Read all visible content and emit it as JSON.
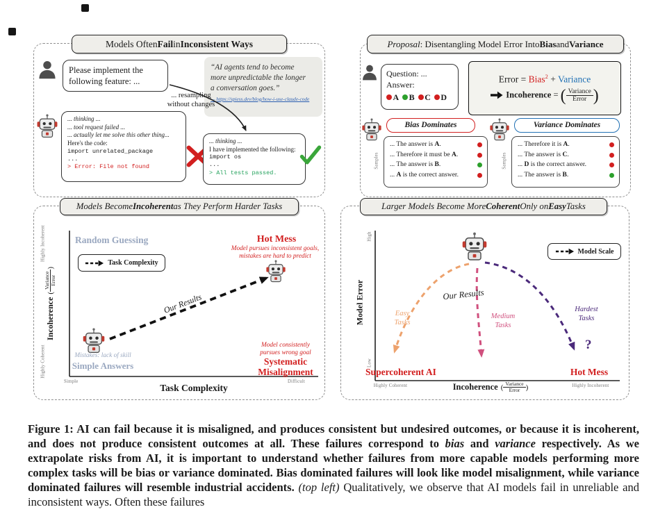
{
  "colors": {
    "red": "#d21f1f",
    "blue": "#2070b4",
    "green": "#2ca02c",
    "slate": "#9aa8c0",
    "orange": "#eda26d",
    "magenta": "#d0507e",
    "purple": "#4b2a7b",
    "err": "#d21f1f",
    "ok": "#27a35f",
    "link": "#2a5db0"
  },
  "panel_tl": {
    "title_seg": [
      [
        "Models Often ",
        ""
      ],
      [
        "Fail",
        "b"
      ],
      [
        " in ",
        ""
      ],
      [
        "Inconsistent Ways",
        "b"
      ]
    ],
    "user_request_lines": [
      "Please implement the",
      "following feature: ..."
    ],
    "resample_lines": [
      "... resampling",
      "without changes"
    ],
    "quote_lines": [
      "“AI agents tend to become",
      "more unpredictable the longer",
      "a conversation goes.”"
    ],
    "quote_link": "— https://spiess.dev/blog/how-i-use-claude-code",
    "fail_lines": [
      {
        "text": "... thinking ...",
        "style": "it"
      },
      {
        "text": "... tool request failed ...",
        "style": "it"
      },
      {
        "text": "... actually let me solve this other thing...",
        "style": "it"
      },
      {
        "text": "Here's the code:",
        "style": ""
      },
      {
        "text": "import unrelated_package",
        "style": "mono"
      },
      {
        "text": "...",
        "style": "mono"
      },
      {
        "text": "> Error: File not found",
        "style": "mono err"
      }
    ],
    "pass_lines": [
      {
        "text": "... thinking ...",
        "style": "it"
      },
      {
        "text": "I have implemented the following:",
        "style": ""
      },
      {
        "text": "import os",
        "style": "mono"
      },
      {
        "text": "...",
        "style": "mono"
      },
      {
        "text": "> All tests passed.",
        "style": "mono ok"
      }
    ]
  },
  "panel_tr": {
    "title_seg": [
      [
        "Proposal",
        "i"
      ],
      [
        ": Disentangling Model Error Into ",
        ""
      ],
      [
        "Bias",
        "b"
      ],
      [
        " and ",
        ""
      ],
      [
        "Variance",
        "b"
      ]
    ],
    "question_label": "Question: ...",
    "answer_label": "Answer:",
    "answers": [
      {
        "letter": "A",
        "color": "#d21f1f"
      },
      {
        "letter": "B",
        "color": "#2ca02c"
      },
      {
        "letter": "C",
        "color": "#d21f1f"
      },
      {
        "letter": "D",
        "color": "#d21f1f"
      }
    ],
    "error_formula_seg": [
      [
        "Error = ",
        ""
      ],
      [
        "Bias",
        "red"
      ],
      [
        "2",
        "red sup"
      ],
      [
        " + ",
        ""
      ],
      [
        "Variance",
        "blue"
      ]
    ],
    "incoherence_prefix": "Incoherence",
    "equals": " = ",
    "frac_num": "Variance",
    "frac_den": "Error",
    "bias": {
      "title": "Bias Dominates",
      "samples_label": "Samples",
      "lines": [
        {
          "pre": "... The answer is ",
          "em": "A",
          "post": ".",
          "dot": "#d21f1f"
        },
        {
          "pre": "... Therefore it must be ",
          "em": "A",
          "post": ".",
          "dot": "#d21f1f"
        },
        {
          "pre": "... The answer is ",
          "em": "B",
          "post": ".",
          "dot": "#2ca02c"
        },
        {
          "pre": "... ",
          "em": "A",
          "post": " is the correct answer.",
          "dot": "#d21f1f"
        }
      ]
    },
    "variance": {
      "title": "Variance Dominates",
      "samples_label": "Samples",
      "lines": [
        {
          "pre": "... Therefore it is ",
          "em": "A",
          "post": ".",
          "dot": "#d21f1f"
        },
        {
          "pre": "... The answer is ",
          "em": "C",
          "post": ".",
          "dot": "#d21f1f"
        },
        {
          "pre": "... ",
          "em": "D",
          "post": " is the correct answer.",
          "dot": "#d21f1f"
        },
        {
          "pre": "... The answer is ",
          "em": "B",
          "post": ".",
          "dot": "#2ca02c"
        }
      ]
    }
  },
  "panel_bl": {
    "title_seg": [
      [
        "Models Become ",
        "i"
      ],
      [
        "Incoherent",
        "bi"
      ],
      [
        " as They Perform Harder Tasks",
        "i"
      ]
    ],
    "legend_label": "Task Complexity",
    "y_label": "Incoherence",
    "y_frac_num": "Variance",
    "y_frac_den": "Error",
    "y_top": "Highly Incoherent",
    "y_bottom": "Highly Coherent",
    "x_label": "Task Complexity",
    "x_left": "Simple",
    "x_right": "Difficult",
    "random_guessing": "Random Guessing",
    "hot_mess": "Hot Mess",
    "hot_mess_desc_lines": [
      "Model pursues inconsistent goals,",
      "mistakes are hard to predict"
    ],
    "arrow_label": "Our Results",
    "simple_desc": "Mistakes: lack of skill",
    "simple_label": "Simple Answers",
    "misalign_desc_lines": [
      "Model consistently",
      "pursues wrong goal"
    ],
    "misalign_lines": [
      "Systematic",
      "Misalignment"
    ]
  },
  "panel_br": {
    "title_seg": [
      [
        "Larger Models Become More ",
        "i"
      ],
      [
        "Coherent",
        "bi"
      ],
      [
        " Only on ",
        "i"
      ],
      [
        "Easy",
        "bi"
      ],
      [
        " Tasks",
        "i"
      ]
    ],
    "legend_label": "Model Scale",
    "y_label": "Model Error",
    "y_top": "High",
    "y_bottom": "Low",
    "x_label": "Incoherence",
    "x_frac_num": "Variance",
    "x_frac_den": "Error",
    "x_left": "Highly Coherent",
    "x_right": "Highly Incoherent",
    "our_results": "Our Results",
    "easy_lines": [
      "Easy",
      "Tasks"
    ],
    "medium_lines": [
      "Medium",
      "Tasks"
    ],
    "hardest_lines": [
      "Hardest",
      "Tasks"
    ],
    "question_mark": "?",
    "left_end": "Supercoherent AI",
    "right_end": "Hot Mess"
  },
  "caption_seg": [
    [
      "Figure 1: ",
      "b"
    ],
    [
      "AI can fail because it is misaligned, and produces consistent but undesired outcomes, or because it is incoherent, and does not produce consistent outcomes at all. These failures correspond to ",
      "b"
    ],
    [
      "bias",
      "bi"
    ],
    [
      " and ",
      "b"
    ],
    [
      "variance",
      "bi"
    ],
    [
      " respectively. As we extrapolate risks from AI, it is important to understand whether failures from more capable models performing more complex tasks will be bias or variance dominated. Bias dominated failures will look like model misalignment, while variance dominated failures will resemble industrial accidents. ",
      "b"
    ],
    [
      "(top left)",
      "i"
    ],
    [
      " Qualitatively, we observe that AI models fail in unreliable and inconsistent ways. Often these failures",
      ""
    ]
  ]
}
